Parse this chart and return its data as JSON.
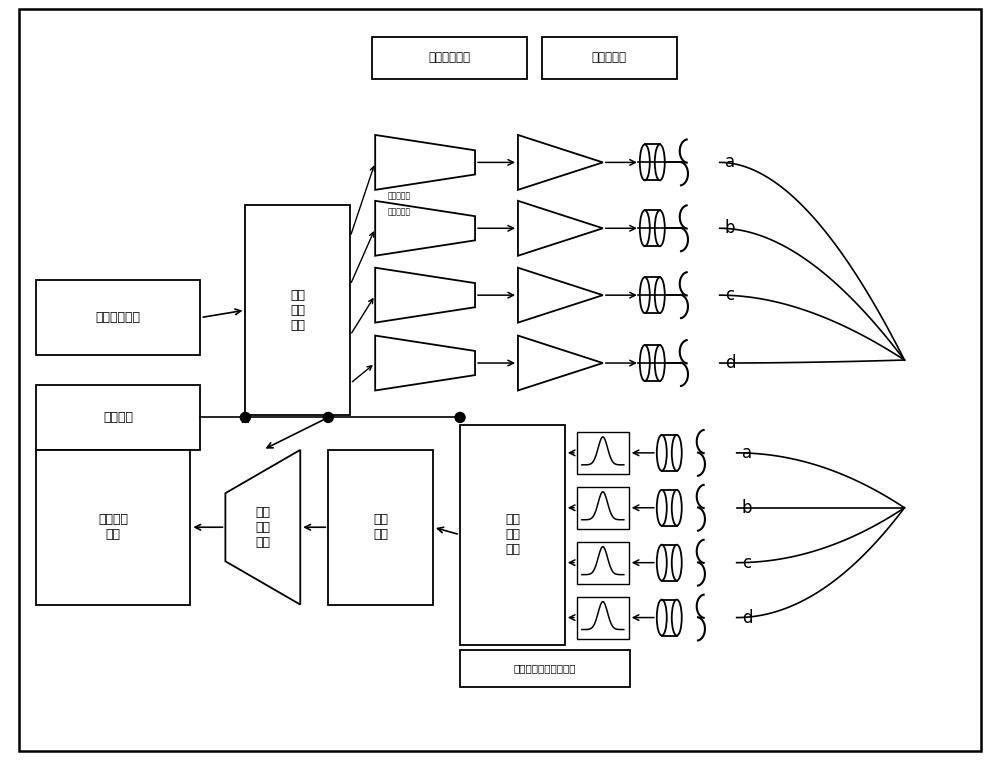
{
  "bg": "#ffffff",
  "lc": "#000000",
  "channels": [
    "a",
    "b",
    "c",
    "d"
  ],
  "labels": {
    "prbs": "伪随机码模块",
    "clock": "时钟模块",
    "diff_enc": "差分\n编码\n模块",
    "p2s_title": "并串转换模块",
    "driver_title": "驱动器模块",
    "ic": "干扰\n消除\n模块",
    "decoder": "解码\n模块",
    "s2p": "串并\n转换\n模块",
    "ber": "误码检测\n模块",
    "eq": "连续时间线性均衡模块",
    "msb": "最高有效位",
    "lsb": "最低有效位"
  }
}
